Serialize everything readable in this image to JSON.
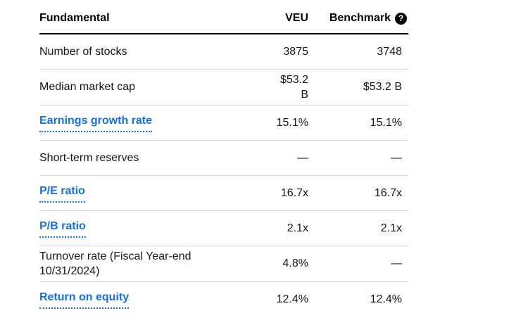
{
  "table": {
    "columns": {
      "fundamental": "Fundamental",
      "veu": "VEU",
      "benchmark": "Benchmark"
    },
    "help_icon_glyph": "?",
    "rows": [
      {
        "label": "Number of stocks",
        "link": false,
        "veu": "3875",
        "benchmark": "3748"
      },
      {
        "label": "Median market cap",
        "link": false,
        "veu": "$53.2 B",
        "benchmark": "$53.2 B"
      },
      {
        "label": "Earnings growth rate",
        "link": true,
        "veu": "15.1%",
        "benchmark": "15.1%"
      },
      {
        "label": "Short-term reserves",
        "link": false,
        "veu": "—",
        "benchmark": "—"
      },
      {
        "label": "P/E ratio",
        "link": true,
        "veu": "16.7x",
        "benchmark": "16.7x"
      },
      {
        "label": "P/B ratio",
        "link": true,
        "veu": "2.1x",
        "benchmark": "2.1x"
      },
      {
        "label": "Turnover rate (Fiscal Year-end 10/31/2024)",
        "link": false,
        "veu": "4.8%",
        "benchmark": "—"
      },
      {
        "label": "Return on equity",
        "link": true,
        "veu": "12.4%",
        "benchmark": "12.4%"
      }
    ]
  },
  "colors": {
    "link_blue": "#146ef5",
    "text": "#161616",
    "divider": "#d8d8d8",
    "header_rule": "#000000",
    "background": "#ffffff"
  }
}
